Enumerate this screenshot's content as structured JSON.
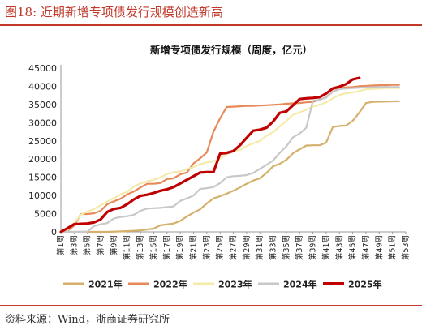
{
  "figure": {
    "title": "图18:  近期新增专项债发行规模创造新高",
    "source": "资料来源：Wind，浙商证券研究所",
    "accent_color": "#c0392b"
  },
  "chart_data": {
    "type": "line",
    "title": "新增专项债发行规模（周度，亿元）",
    "xlabel": "",
    "ylabel": "",
    "ylim": [
      0,
      45000
    ],
    "yticks": [
      0,
      5000,
      10000,
      15000,
      20000,
      25000,
      30000,
      35000,
      40000,
      45000
    ],
    "x_ticklabels": [
      "第1周",
      "第3周",
      "第5周",
      "第7周",
      "第9周",
      "第11周",
      "第13周",
      "第15周",
      "第17周",
      "第19周",
      "第21周",
      "第23周",
      "第25周",
      "第27周",
      "第29周",
      "第31周",
      "第33周",
      "第35周",
      "第37周",
      "第39周",
      "第41周",
      "第43周",
      "第45周",
      "第47周",
      "第49周",
      "第51周",
      "第53周"
    ],
    "x_tick_weeks": [
      1,
      3,
      5,
      7,
      9,
      11,
      13,
      15,
      17,
      19,
      21,
      23,
      25,
      27,
      29,
      31,
      33,
      35,
      37,
      39,
      41,
      43,
      45,
      47,
      49,
      51,
      53
    ],
    "x_range": [
      1,
      53
    ],
    "grid": false,
    "legend_position": "bottom",
    "series": [
      {
        "name": "2021年",
        "color": "#d4b06a",
        "width": 2.2,
        "x": [
          1,
          8,
          11,
          13,
          15,
          16,
          18,
          19,
          20,
          21,
          22,
          23,
          24,
          25,
          26,
          27,
          28,
          29,
          30,
          31,
          32,
          33,
          34,
          35,
          36,
          37,
          38,
          39,
          40,
          41,
          42,
          43,
          44,
          45,
          46,
          47,
          48,
          50,
          52
        ],
        "y": [
          0,
          0,
          200,
          400,
          900,
          1800,
          2300,
          3000,
          4200,
          5300,
          6200,
          7800,
          9200,
          9800,
          10500,
          11300,
          12200,
          13200,
          14100,
          14700,
          16200,
          18000,
          18700,
          19800,
          21600,
          22700,
          23700,
          23800,
          23800,
          24500,
          28800,
          29100,
          29200,
          30500,
          32800,
          35400,
          35700,
          35800,
          35900
        ]
      },
      {
        "name": "2022年",
        "color": "#e8895a",
        "width": 2.2,
        "x": [
          1,
          2,
          3,
          4,
          5,
          6,
          7,
          8,
          9,
          10,
          11,
          12,
          13,
          14,
          15,
          16,
          17,
          18,
          19,
          20,
          21,
          22,
          23,
          24,
          25,
          26,
          27,
          28,
          29,
          30,
          31,
          32,
          33,
          34,
          35,
          36,
          37,
          38,
          39,
          40,
          41,
          42,
          43,
          44,
          45,
          46,
          47,
          48,
          49,
          50,
          51,
          52
        ],
        "y": [
          0,
          300,
          1700,
          4900,
          4900,
          5100,
          5800,
          7600,
          8400,
          9100,
          10300,
          11100,
          12200,
          13200,
          13200,
          13400,
          14500,
          14700,
          15800,
          16300,
          18800,
          20200,
          21800,
          27500,
          31200,
          34300,
          34400,
          34500,
          34600,
          34600,
          34700,
          34800,
          34900,
          35000,
          35200,
          35300,
          35400,
          35600,
          35700,
          36300,
          37000,
          38500,
          39500,
          39700,
          39800,
          40000,
          40100,
          40200,
          40300,
          40300,
          40400,
          40400
        ]
      },
      {
        "name": "2023年",
        "color": "#f4ebaa",
        "width": 2.2,
        "x": [
          1,
          2,
          3,
          4,
          5,
          6,
          7,
          8,
          9,
          10,
          11,
          12,
          13,
          14,
          15,
          16,
          17,
          18,
          19,
          20,
          21,
          22,
          23,
          24,
          25,
          26,
          27,
          28,
          29,
          30,
          31,
          32,
          33,
          34,
          35,
          36,
          37,
          38,
          39,
          40,
          41,
          42,
          43,
          44,
          45,
          46,
          47,
          48,
          49,
          50,
          51,
          52
        ],
        "y": [
          0,
          500,
          2400,
          4700,
          5600,
          6300,
          7300,
          8300,
          9300,
          10300,
          11000,
          12400,
          13300,
          13900,
          14300,
          14900,
          15900,
          16400,
          16600,
          17200,
          17800,
          18600,
          19100,
          19400,
          20200,
          21300,
          22200,
          22500,
          23600,
          24300,
          25000,
          26400,
          27400,
          29000,
          30500,
          32200,
          32800,
          33600,
          34400,
          34900,
          35600,
          36700,
          37600,
          38100,
          38300,
          38700,
          39200,
          39300,
          39400,
          39500,
          39500,
          39500
        ]
      },
      {
        "name": "2024年",
        "color": "#c8c8c8",
        "width": 2.2,
        "x": [
          1,
          4,
          5,
          6,
          7,
          8,
          9,
          10,
          11,
          12,
          13,
          14,
          15,
          16,
          17,
          18,
          19,
          20,
          21,
          22,
          23,
          24,
          25,
          26,
          27,
          28,
          29,
          30,
          31,
          32,
          33,
          34,
          35,
          36,
          37,
          38,
          39,
          40,
          41,
          42,
          43,
          44,
          45,
          46,
          47,
          48,
          49,
          50,
          51,
          52
        ],
        "y": [
          0,
          0,
          100,
          1600,
          2100,
          2400,
          3700,
          4100,
          4300,
          4700,
          5800,
          6400,
          6500,
          6600,
          6800,
          7000,
          8500,
          9200,
          10000,
          11800,
          12000,
          12300,
          13400,
          15000,
          15300,
          15400,
          15600,
          16200,
          17300,
          18400,
          19600,
          21700,
          23500,
          26000,
          27000,
          28600,
          36000,
          36300,
          36900,
          38500,
          39200,
          39400,
          39500,
          39600,
          39700,
          39700,
          39800,
          39800,
          39800,
          39800
        ]
      },
      {
        "name": "2025年",
        "color": "#c00000",
        "width": 3.2,
        "x": [
          1,
          2,
          3,
          4,
          5,
          6,
          7,
          8,
          9,
          10,
          11,
          12,
          13,
          14,
          15,
          16,
          17,
          18,
          19,
          20,
          21,
          22,
          23,
          24,
          25,
          26,
          27,
          28,
          29,
          30,
          31,
          32,
          33,
          34,
          35,
          36,
          37,
          38,
          39,
          40,
          41,
          42,
          43,
          44,
          45,
          46
        ],
        "y": [
          0,
          1000,
          2100,
          2200,
          2300,
          2600,
          3400,
          5500,
          6300,
          6600,
          7600,
          8900,
          9900,
          10200,
          10700,
          11300,
          11700,
          12300,
          13300,
          14300,
          15300,
          16300,
          16400,
          16400,
          21500,
          21700,
          22200,
          23800,
          25800,
          27800,
          28100,
          28600,
          30300,
          32700,
          33100,
          34800,
          36500,
          36700,
          36800,
          37000,
          38000,
          39400,
          39900,
          40600,
          41900,
          42300
        ]
      }
    ]
  }
}
